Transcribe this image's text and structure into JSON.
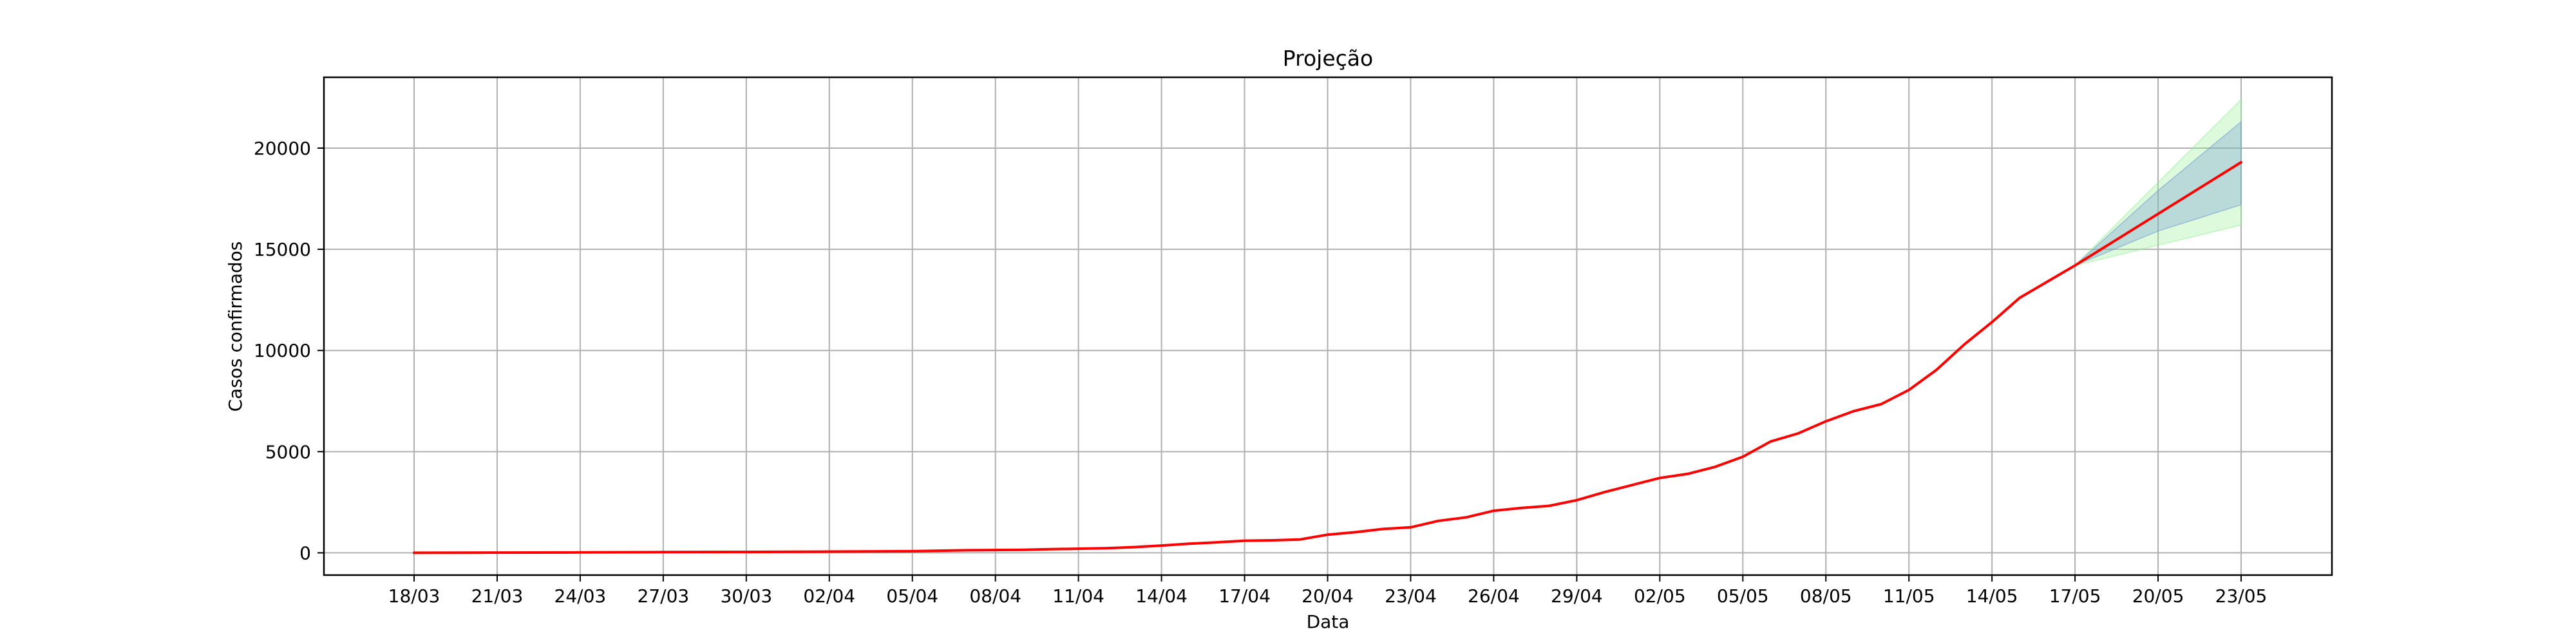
{
  "chart_data": {
    "type": "line",
    "title": "Projeção",
    "xlabel": "Data",
    "ylabel": "Casos confirmados",
    "x_ticks": [
      "18/03",
      "21/03",
      "24/03",
      "27/03",
      "30/03",
      "02/04",
      "05/04",
      "08/04",
      "11/04",
      "14/04",
      "17/04",
      "20/04",
      "23/04",
      "26/04",
      "29/04",
      "02/05",
      "05/05",
      "08/05",
      "11/05",
      "14/05",
      "17/05",
      "20/05",
      "23/05"
    ],
    "y_ticks": [
      0,
      5000,
      10000,
      15000,
      20000
    ],
    "ylim": [
      -1100,
      23500
    ],
    "grid": true,
    "series": [
      {
        "color": "#ff0000",
        "x": [
          "18/03",
          "21/03",
          "24/03",
          "27/03",
          "30/03",
          "02/04",
          "05/04",
          "07/04",
          "09/04",
          "10/04",
          "12/04",
          "13/04",
          "14/04",
          "15/04",
          "16/04",
          "17/04",
          "18/04",
          "19/04",
          "20/04",
          "21/04",
          "22/04",
          "23/04",
          "24/04",
          "25/04",
          "26/04",
          "27/04",
          "28/04",
          "29/04",
          "30/04",
          "01/05",
          "02/05",
          "03/05",
          "04/05",
          "05/05",
          "06/05",
          "07/05",
          "08/05",
          "09/05",
          "10/05",
          "11/05",
          "12/05",
          "13/05",
          "14/05",
          "15/05",
          "17/05",
          "23/05"
        ],
        "y": [
          2,
          10,
          20,
          35,
          45,
          60,
          80,
          130,
          150,
          180,
          230,
          280,
          360,
          450,
          520,
          600,
          620,
          660,
          900,
          1020,
          1180,
          1260,
          1580,
          1750,
          2080,
          2220,
          2320,
          2600,
          3000,
          3350,
          3700,
          3900,
          4250,
          4750,
          5500,
          5900,
          6500,
          7000,
          7350,
          8050,
          9050,
          10300,
          11400,
          12600,
          14200,
          19300
        ]
      }
    ],
    "bands": [
      {
        "color": "#90ee90",
        "x": [
          "17/05",
          "20/05",
          "23/05"
        ],
        "lower": [
          14200,
          15200,
          16200
        ],
        "upper": [
          14200,
          18300,
          22400
        ]
      },
      {
        "color": "#6a8fd0",
        "x": [
          "17/05",
          "20/05",
          "23/05"
        ],
        "lower": [
          14200,
          15900,
          17200
        ],
        "upper": [
          14200,
          17900,
          21300
        ]
      }
    ]
  }
}
